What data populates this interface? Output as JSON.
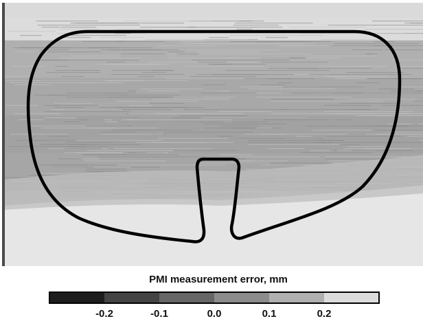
{
  "chart_data": {
    "type": "heatmap",
    "colorbar": {
      "title": "PMI measurement error, mm",
      "tick_labels": [
        "-0.2",
        "-0.1",
        "0.0",
        "0.1",
        "0.2"
      ],
      "tick_values": [
        -0.2,
        -0.1,
        0.0,
        0.1,
        0.2
      ],
      "range": [
        -0.3,
        0.3
      ],
      "bins": [
        {
          "from": -0.3,
          "to": -0.2,
          "color": "#1e1e1e"
        },
        {
          "from": -0.2,
          "to": -0.1,
          "color": "#444444"
        },
        {
          "from": -0.1,
          "to": 0.0,
          "color": "#666666"
        },
        {
          "from": 0.0,
          "to": 0.1,
          "color": "#8c8c8c"
        },
        {
          "from": 0.1,
          "to": 0.2,
          "color": "#b0b0b0"
        },
        {
          "from": 0.2,
          "to": 0.3,
          "color": "#dcdcdc"
        }
      ]
    },
    "field_bands": [
      {
        "value": 0.2,
        "color": "#dcdcdc"
      },
      {
        "value": 0.1,
        "color": "#b0b0b0"
      },
      {
        "value": 0.1,
        "color": "#a8a8a8"
      },
      {
        "value": 0.1,
        "color": "#a2a2a2"
      },
      {
        "value": 0.1,
        "color": "#a6a6a6"
      },
      {
        "value": 0.1,
        "color": "#b4b4b4"
      },
      {
        "value": 0.2,
        "color": "#e4e4e4"
      }
    ],
    "outline_color": "#000000"
  }
}
